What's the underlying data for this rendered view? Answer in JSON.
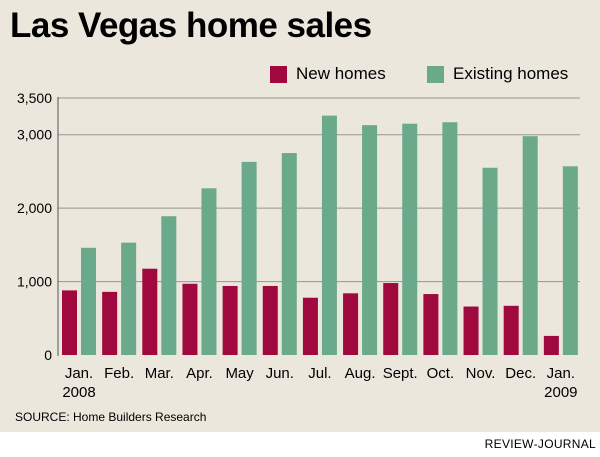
{
  "header": {
    "title": "Las Vegas home sales"
  },
  "footer": {
    "source": "SOURCE: Home Builders Research",
    "credit": "REVIEW-JOURNAL"
  },
  "colors": {
    "new_homes": "#a0093e",
    "existing_homes": "#6aa98a",
    "background": "#ece7dd"
  },
  "chart_data": {
    "type": "bar",
    "title": "Las Vegas home sales",
    "xlabel": "",
    "ylabel": "",
    "ylim": [
      0,
      3500
    ],
    "yticks": [
      0,
      1000,
      2000,
      3000,
      3500
    ],
    "ytick_labels": [
      "0",
      "1,000",
      "2,000",
      "3,000",
      "3,500"
    ],
    "grid": true,
    "legend_position": "top-right",
    "categories": [
      "Jan.",
      "Feb.",
      "Mar.",
      "Apr.",
      "May",
      "Jun.",
      "Jul.",
      "Aug.",
      "Sept.",
      "Oct.",
      "Nov.",
      "Dec.",
      "Jan."
    ],
    "year_labels": [
      {
        "category_index": 0,
        "label": "2008"
      },
      {
        "category_index": 12,
        "label": "2009"
      }
    ],
    "series": [
      {
        "name": "New homes",
        "values": [
          880,
          860,
          1175,
          970,
          940,
          940,
          780,
          840,
          980,
          830,
          660,
          670,
          260
        ]
      },
      {
        "name": "Existing homes",
        "values": [
          1460,
          1530,
          1890,
          2270,
          2630,
          2750,
          3260,
          3130,
          3150,
          3170,
          2550,
          2980,
          2570
        ]
      }
    ]
  }
}
